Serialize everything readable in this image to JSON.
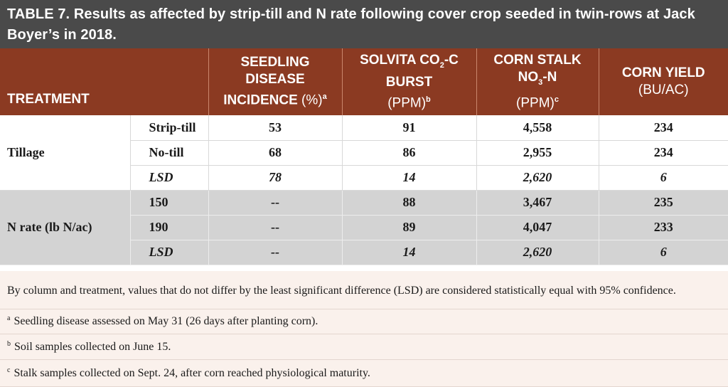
{
  "title": {
    "label": "TABLE 7.",
    "text": "Results as affected by strip-till and N rate following cover crop seeded in twin-rows at Jack Boyer’s in 2018."
  },
  "headers": {
    "treatment": "TREATMENT",
    "seedling": {
      "line1": "SEEDLING",
      "line2": "DISEASE",
      "line3": "INCIDENCE",
      "unit": "(%)",
      "sup": "a"
    },
    "solvita": {
      "line1_a": "SOLVITA CO",
      "line1_sub": "2",
      "line1_b": "-C",
      "line2": "BURST",
      "unit": "(PPM)",
      "sup": "b"
    },
    "stalk": {
      "line1": "CORN STALK",
      "line2_a": "NO",
      "line2_sub": "3",
      "line2_b": "-N",
      "unit": "(PPM)",
      "sup": "c"
    },
    "yield": {
      "line1": "CORN YIELD",
      "unit": "(BU/AC)"
    }
  },
  "tillage": {
    "label": "Tillage",
    "rows": [
      {
        "sub": "Strip-till",
        "seedling": "53",
        "solvita": "91",
        "stalk": "4,558",
        "yield": "234"
      },
      {
        "sub": "No-till",
        "seedling": "68",
        "solvita": "86",
        "stalk": "2,955",
        "yield": "234"
      },
      {
        "sub": "LSD",
        "seedling": "78",
        "solvita": "14",
        "stalk": "2,620",
        "yield": "6"
      }
    ]
  },
  "nrate": {
    "label": "N rate (lb N/ac)",
    "rows": [
      {
        "sub": "150",
        "seedling": "--",
        "solvita": "88",
        "stalk": "3,467",
        "yield": "235"
      },
      {
        "sub": "190",
        "seedling": "--",
        "solvita": "89",
        "stalk": "4,047",
        "yield": "233"
      },
      {
        "sub": "LSD",
        "seedling": "--",
        "solvita": "14",
        "stalk": "2,620",
        "yield": "6"
      }
    ]
  },
  "notes": {
    "main": "By column and treatment, values that do not differ by the least significant difference (LSD) are considered statistically equal with 95% confidence.",
    "a": {
      "mark": "a",
      "text": "Seedling disease assessed on May 31 (26 days after planting corn)."
    },
    "b": {
      "mark": "b",
      "text": "Soil samples collected on June 15."
    },
    "c": {
      "mark": "c",
      "text": "Stalk samples collected on Sept. 24, after corn reached physiological maturity."
    }
  },
  "colors": {
    "title_bg": "#4a4a4a",
    "header_bg": "#8b3a22",
    "nrate_bg": "#d3d3d3",
    "notes_bg": "#faf1ec"
  }
}
